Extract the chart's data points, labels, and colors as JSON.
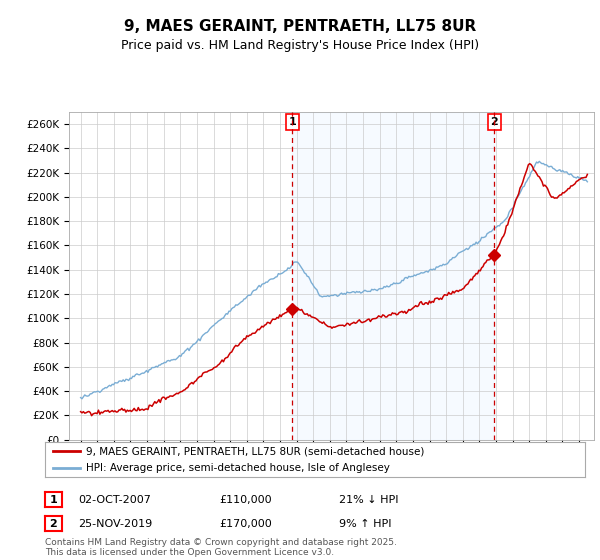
{
  "title": "9, MAES GERAINT, PENTRAETH, LL75 8UR",
  "subtitle": "Price paid vs. HM Land Registry's House Price Index (HPI)",
  "ylim": [
    0,
    270000
  ],
  "yticks": [
    0,
    20000,
    40000,
    60000,
    80000,
    100000,
    120000,
    140000,
    160000,
    180000,
    200000,
    220000,
    240000,
    260000
  ],
  "ytick_labels": [
    "£0",
    "£20K",
    "£40K",
    "£60K",
    "£80K",
    "£100K",
    "£120K",
    "£140K",
    "£160K",
    "£180K",
    "£200K",
    "£220K",
    "£240K",
    "£260K"
  ],
  "property_color": "#cc0000",
  "hpi_color": "#7aadd4",
  "shade_color": "#ddeeff",
  "marker1_x": 2007.75,
  "marker2_x": 2019.9,
  "marker1_label": "1",
  "marker2_label": "2",
  "legend_property": "9, MAES GERAINT, PENTRAETH, LL75 8UR (semi-detached house)",
  "legend_hpi": "HPI: Average price, semi-detached house, Isle of Anglesey",
  "annotation1_date": "02-OCT-2007",
  "annotation1_price": "£110,000",
  "annotation1_hpi": "21% ↓ HPI",
  "annotation2_date": "25-NOV-2019",
  "annotation2_price": "£170,000",
  "annotation2_hpi": "9% ↑ HPI",
  "footer": "Contains HM Land Registry data © Crown copyright and database right 2025.\nThis data is licensed under the Open Government Licence v3.0.",
  "background_color": "#ffffff",
  "grid_color": "#cccccc"
}
